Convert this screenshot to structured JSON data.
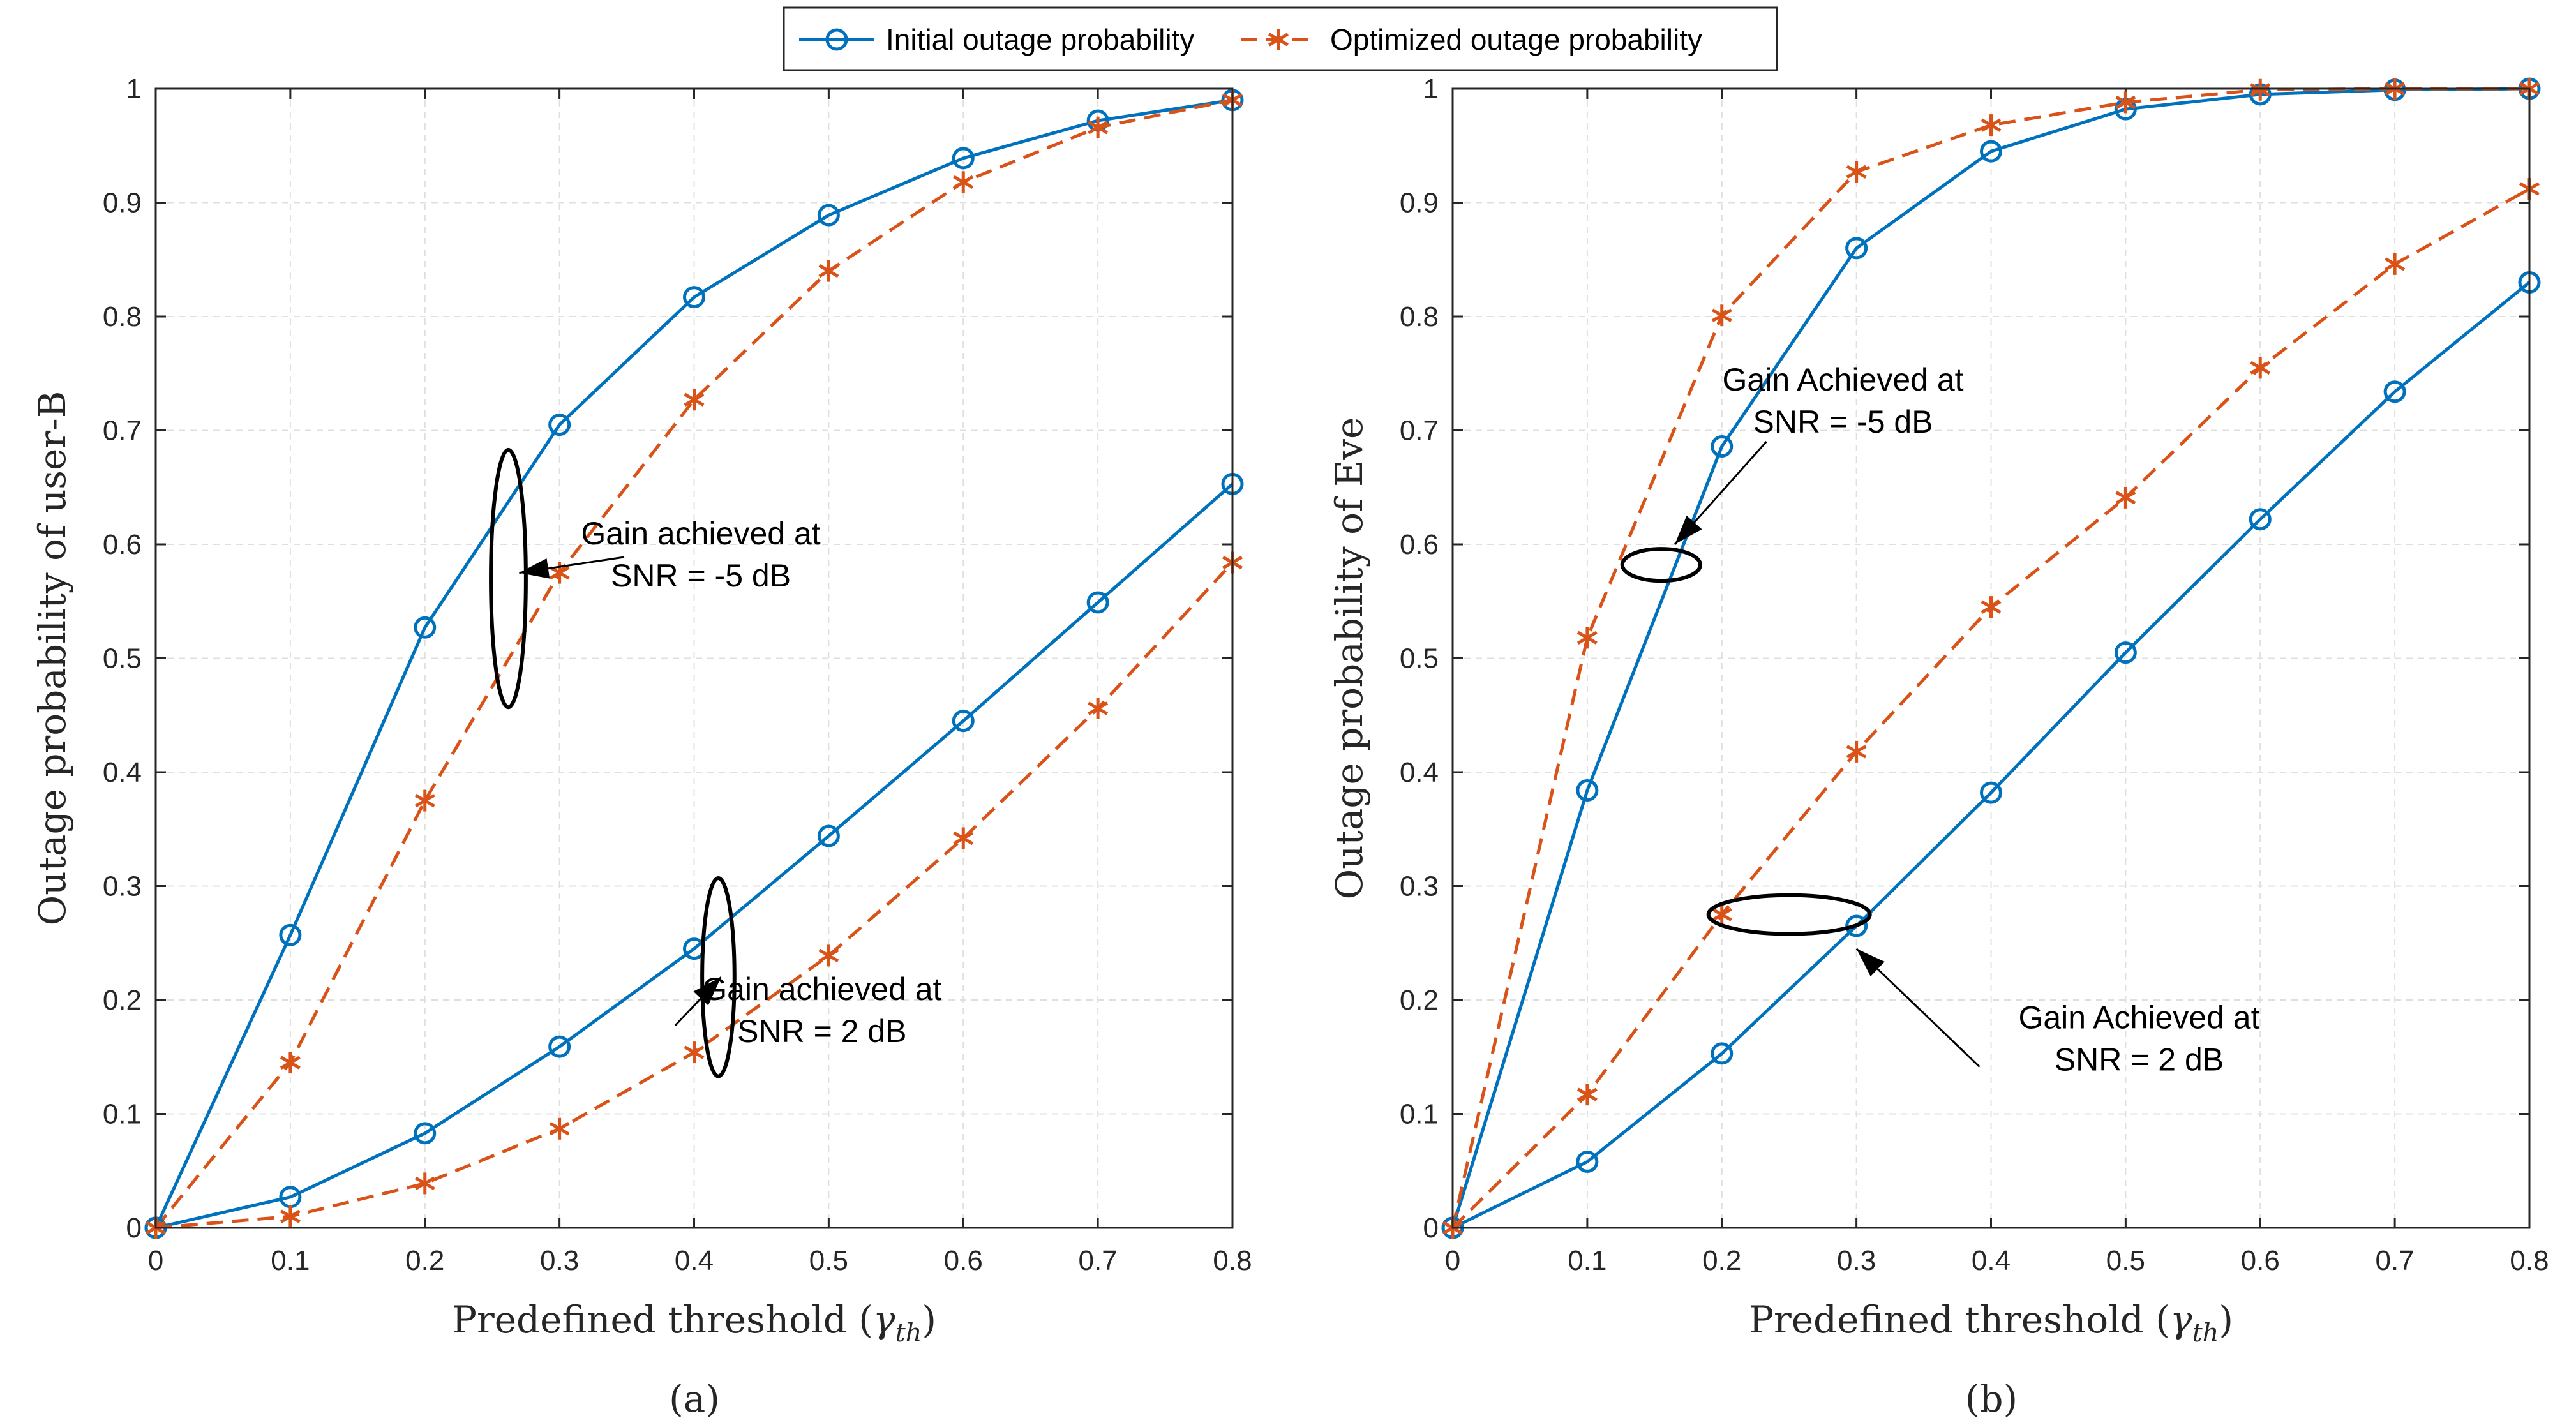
{
  "legend": {
    "series": [
      {
        "label": "Initial outage probability",
        "color": "#0072BD",
        "marker": "circle",
        "dash": "solid"
      },
      {
        "label": "Optimized outage probability",
        "color": "#D95319",
        "marker": "asterisk",
        "dash": "dashed"
      }
    ]
  },
  "chart_data": [
    {
      "type": "line",
      "caption": "(a)",
      "xlabel": "Predefined threshold (γth)",
      "xlabel_main": "Predefined threshold (",
      "xlabel_symbol": "γ",
      "xlabel_sub": "th",
      "xlabel_close": ")",
      "ylabel": "Outage probability of user-B",
      "xlim": [
        0,
        0.8
      ],
      "ylim": [
        0,
        1
      ],
      "xticks": [
        0,
        0.1,
        0.2,
        0.3,
        0.4,
        0.5,
        0.6,
        0.7,
        0.8
      ],
      "yticks": [
        0,
        0.1,
        0.2,
        0.3,
        0.4,
        0.5,
        0.6,
        0.7,
        0.8,
        0.9,
        1
      ],
      "xtick_labels": [
        "0",
        "0.1",
        "0.2",
        "0.3",
        "0.4",
        "0.5",
        "0.6",
        "0.7",
        "0.8"
      ],
      "ytick_labels": [
        "0",
        "0.1",
        "0.2",
        "0.3",
        "0.4",
        "0.5",
        "0.6",
        "0.7",
        "0.8",
        "0.9",
        "1"
      ],
      "grid": true,
      "x": [
        0,
        0.1,
        0.2,
        0.3,
        0.4,
        0.5,
        0.6,
        0.7,
        0.8
      ],
      "series": [
        {
          "name": "Initial outage probability (SNR = -5 dB)",
          "style": 0,
          "values": [
            0,
            0.257,
            0.527,
            0.705,
            0.817,
            0.889,
            0.939,
            0.972,
            0.99
          ]
        },
        {
          "name": "Optimized outage probability (SNR = -5 dB)",
          "style": 1,
          "values": [
            0,
            0.145,
            0.375,
            0.575,
            0.727,
            0.84,
            0.918,
            0.966,
            0.99
          ]
        },
        {
          "name": "Initial outage probability (SNR = 2 dB)",
          "style": 0,
          "values": [
            0,
            0.027,
            0.083,
            0.159,
            0.245,
            0.344,
            0.445,
            0.549,
            0.653
          ]
        },
        {
          "name": "Optimized outage probability (SNR = 2 dB)",
          "style": 1,
          "values": [
            0,
            0.01,
            0.039,
            0.087,
            0.154,
            0.239,
            0.342,
            0.456,
            0.584
          ]
        }
      ],
      "annotations": [
        {
          "lines": [
            "Gain achieved at",
            "SNR = -5 dB"
          ],
          "text_at": [
            0.405,
            0.6
          ],
          "arrow_to": [
            0.27,
            0.575
          ],
          "ellipse": {
            "cx": 0.262,
            "cy": 0.57,
            "rx": 0.013,
            "ry": 0.113
          }
        },
        {
          "lines": [
            "Gain achieved at",
            "SNR = 2 dB"
          ],
          "text_at": [
            0.495,
            0.2
          ],
          "arrow_to": [
            0.42,
            0.22
          ],
          "ellipse": {
            "cx": 0.418,
            "cy": 0.22,
            "rx": 0.012,
            "ry": 0.087
          }
        }
      ]
    },
    {
      "type": "line",
      "caption": "(b)",
      "xlabel": "Predefined threshold (γth)",
      "xlabel_main": "Predefined threshold (",
      "xlabel_symbol": "γ",
      "xlabel_sub": "th",
      "xlabel_close": ")",
      "ylabel": "Outage probability of Eve",
      "xlim": [
        0,
        0.8
      ],
      "ylim": [
        0,
        1
      ],
      "xticks": [
        0,
        0.1,
        0.2,
        0.3,
        0.4,
        0.5,
        0.6,
        0.7,
        0.8
      ],
      "yticks": [
        0,
        0.1,
        0.2,
        0.3,
        0.4,
        0.5,
        0.6,
        0.7,
        0.8,
        0.9,
        1
      ],
      "xtick_labels": [
        "0",
        "0.1",
        "0.2",
        "0.3",
        "0.4",
        "0.5",
        "0.6",
        "0.7",
        "0.8"
      ],
      "ytick_labels": [
        "0",
        "0.1",
        "0.2",
        "0.3",
        "0.4",
        "0.5",
        "0.6",
        "0.7",
        "0.8",
        "0.9",
        "1"
      ],
      "grid": true,
      "x": [
        0,
        0.1,
        0.2,
        0.3,
        0.4,
        0.5,
        0.6,
        0.7,
        0.8
      ],
      "series": [
        {
          "name": "Initial outage probability (SNR = -5 dB)",
          "style": 0,
          "values": [
            0,
            0.384,
            0.686,
            0.86,
            0.945,
            0.982,
            0.995,
            0.999,
            1.0
          ]
        },
        {
          "name": "Optimized outage probability (SNR = -5 dB)",
          "style": 1,
          "values": [
            0,
            0.518,
            0.801,
            0.927,
            0.968,
            0.988,
            0.999,
            1.0,
            1.0
          ]
        },
        {
          "name": "Initial outage probability (SNR = 2 dB)",
          "style": 0,
          "values": [
            0,
            0.058,
            0.153,
            0.265,
            0.382,
            0.505,
            0.622,
            0.734,
            0.83
          ]
        },
        {
          "name": "Optimized outage probability (SNR = 2 dB)",
          "style": 1,
          "values": [
            0,
            0.117,
            0.275,
            0.418,
            0.545,
            0.641,
            0.755,
            0.846,
            0.912
          ]
        }
      ],
      "annotations": [
        {
          "lines": [
            "Gain Achieved at",
            "SNR = -5 dB"
          ],
          "text_at": [
            0.29,
            0.735
          ],
          "arrow_to": [
            0.165,
            0.6
          ],
          "ellipse": {
            "cx": 0.155,
            "cy": 0.582,
            "rx": 0.029,
            "ry": 0.014
          }
        },
        {
          "lines": [
            "Gain Achieved at",
            "SNR = 2 dB"
          ],
          "text_at": [
            0.51,
            0.175
          ],
          "arrow_to": [
            0.3,
            0.245
          ],
          "ellipse": {
            "cx": 0.25,
            "cy": 0.275,
            "rx": 0.06,
            "ry": 0.017
          }
        }
      ]
    }
  ]
}
